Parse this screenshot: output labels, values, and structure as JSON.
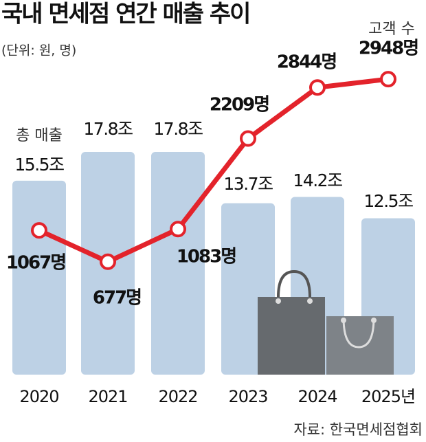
{
  "chart_data": {
    "type": "bar_line",
    "title": "국내 면세점 연간 매출 추이",
    "subtitle": "(단위: 원, 명)",
    "source": "자료: 한국면세점협회",
    "categories": [
      "2020",
      "2021",
      "2022",
      "2023",
      "2024",
      "2025년"
    ],
    "series": [
      {
        "name": "총 매출",
        "type": "bar",
        "color": "#bdd1e5",
        "values": [
          15.5,
          17.8,
          17.8,
          13.7,
          14.2,
          12.5
        ],
        "value_labels": [
          "15.5조",
          "17.8조",
          "17.8조",
          "13.7조",
          "14.2조",
          "12.5조"
        ]
      },
      {
        "name": "고객 수",
        "type": "line",
        "color": "#e3232b",
        "values": [
          1067,
          677,
          1083,
          2209,
          2844,
          2948
        ],
        "value_labels": [
          "1067명",
          "677명",
          "1083명",
          "2209명",
          "2844명",
          "2948명"
        ]
      }
    ]
  }
}
